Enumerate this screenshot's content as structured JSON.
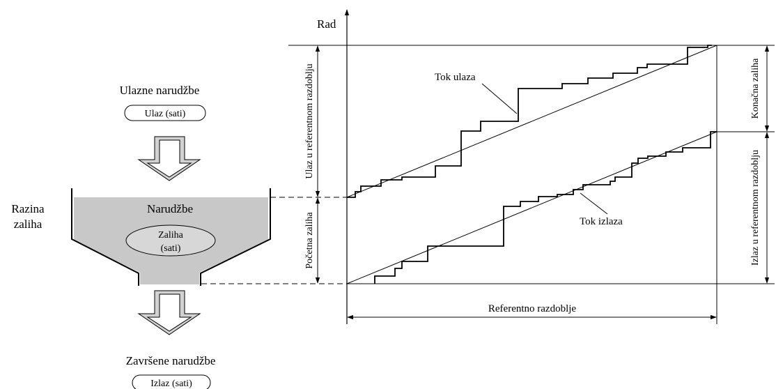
{
  "funnel": {
    "title_in": "Ulazne narudžbe",
    "badge_in": "Ulaz (sati)",
    "level_label_1": "Razina",
    "level_label_2": "zaliha",
    "tank_label": "Narudžbe",
    "stock_label_1": "Zaliha",
    "stock_label_2": "(sati)",
    "title_out": "Završene narudžbe",
    "badge_out": "Izlaz (sati)",
    "colors": {
      "tank_fill": "#c8c8c8",
      "line": "#000000"
    }
  },
  "chart": {
    "y_axis_label": "Rad",
    "label_input_flow": "Tok ulaza",
    "label_output_flow": "Tok izlaza",
    "label_reference_period": "Referentno razdoblje",
    "dim_input_in_period": "Ulaz u referentnom razdoblju",
    "dim_initial_stock": "Početna zaliha",
    "dim_final_stock": "Konačna zaliha",
    "dim_output_in_period": "Izlaz u referentnom razdoblju"
  }
}
